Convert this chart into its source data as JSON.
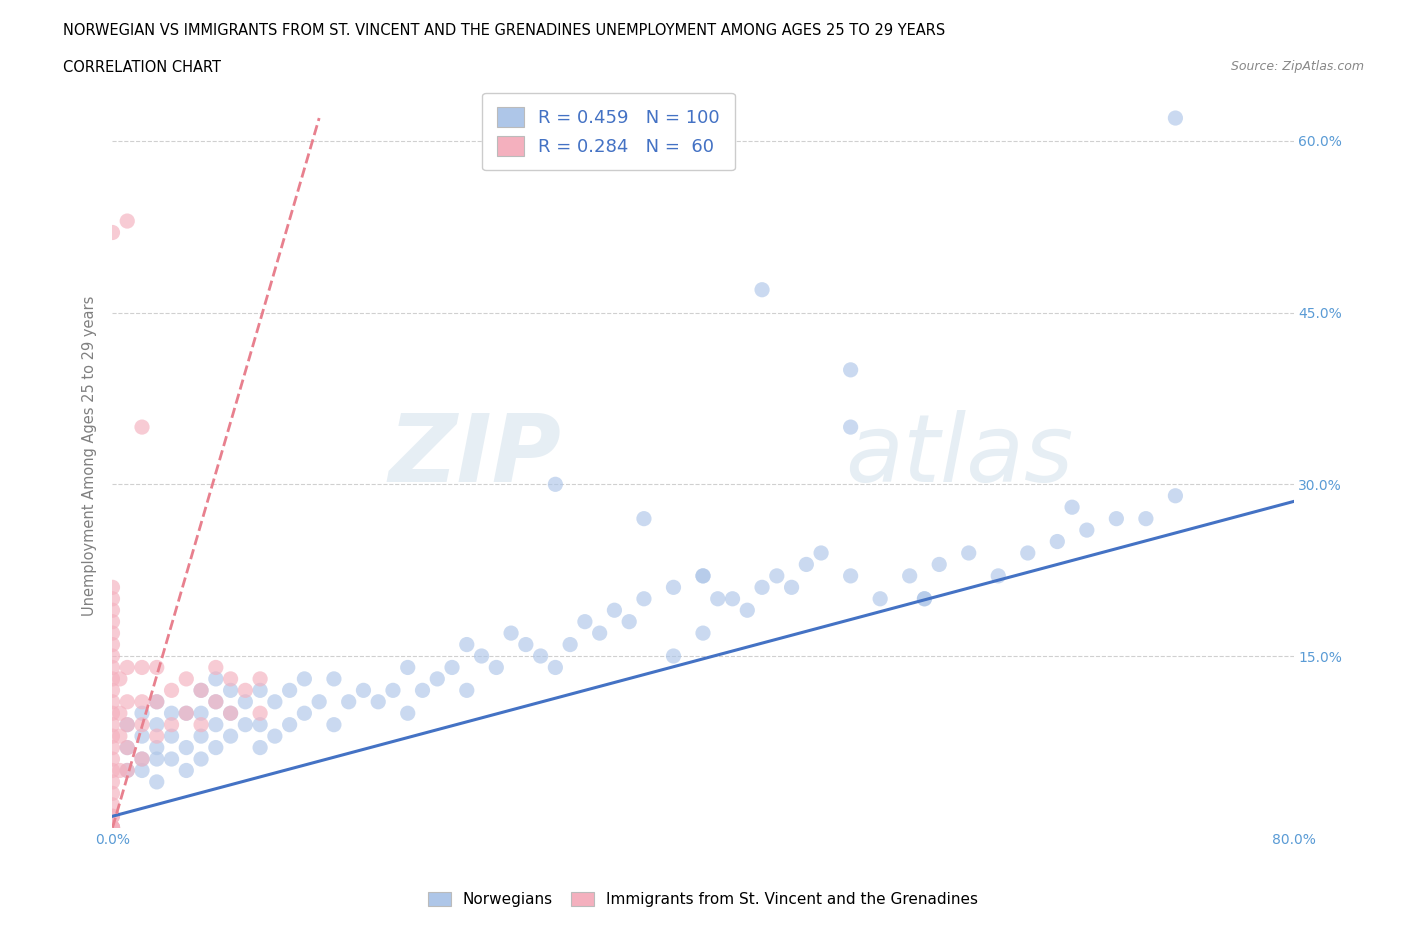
{
  "title_line1": "NORWEGIAN VS IMMIGRANTS FROM ST. VINCENT AND THE GRENADINES UNEMPLOYMENT AMONG AGES 25 TO 29 YEARS",
  "title_line2": "CORRELATION CHART",
  "source_text": "Source: ZipAtlas.com",
  "ylabel": "Unemployment Among Ages 25 to 29 years",
  "xlim": [
    0.0,
    0.8
  ],
  "ylim": [
    0.0,
    0.65
  ],
  "xticks": [
    0.0,
    0.1,
    0.2,
    0.3,
    0.4,
    0.5,
    0.6,
    0.7,
    0.8
  ],
  "xticklabels": [
    "0.0%",
    "",
    "",
    "",
    "",
    "",
    "",
    "",
    "80.0%"
  ],
  "yticks": [
    0.0,
    0.15,
    0.3,
    0.45,
    0.6
  ],
  "yticklabels": [
    "",
    "15.0%",
    "30.0%",
    "45.0%",
    "60.0%"
  ],
  "grid_color": "#d0d0d0",
  "background_color": "#ffffff",
  "norwegian_color": "#aec6e8",
  "immigrant_color": "#f4b0be",
  "norwegian_line_color": "#4472c4",
  "immigrant_line_color": "#e8808e",
  "R_norwegian": 0.459,
  "N_norwegian": 100,
  "R_immigrant": 0.284,
  "N_immigrant": 60,
  "watermark_zip": "ZIP",
  "watermark_atlas": "atlas",
  "legend_norwegian": "Norwegians",
  "legend_immigrant": "Immigrants from St. Vincent and the Grenadines",
  "nor_line_x0": 0.0,
  "nor_line_y0": 0.01,
  "nor_line_x1": 0.8,
  "nor_line_y1": 0.285,
  "imm_line_x0": 0.0,
  "imm_line_y0": 0.0,
  "imm_line_x1": 0.14,
  "imm_line_y1": 0.62,
  "nor_scatter_x": [
    0.01,
    0.01,
    0.01,
    0.02,
    0.02,
    0.02,
    0.02,
    0.03,
    0.03,
    0.03,
    0.03,
    0.03,
    0.04,
    0.04,
    0.04,
    0.05,
    0.05,
    0.05,
    0.06,
    0.06,
    0.06,
    0.06,
    0.07,
    0.07,
    0.07,
    0.07,
    0.08,
    0.08,
    0.08,
    0.09,
    0.09,
    0.1,
    0.1,
    0.1,
    0.11,
    0.11,
    0.12,
    0.12,
    0.13,
    0.13,
    0.14,
    0.15,
    0.15,
    0.16,
    0.17,
    0.18,
    0.19,
    0.2,
    0.2,
    0.21,
    0.22,
    0.23,
    0.24,
    0.24,
    0.25,
    0.26,
    0.27,
    0.28,
    0.29,
    0.3,
    0.31,
    0.32,
    0.33,
    0.34,
    0.35,
    0.36,
    0.38,
    0.4,
    0.4,
    0.41,
    0.42,
    0.43,
    0.44,
    0.45,
    0.46,
    0.47,
    0.48,
    0.5,
    0.5,
    0.52,
    0.54,
    0.55,
    0.56,
    0.58,
    0.6,
    0.62,
    0.64,
    0.65,
    0.66,
    0.68,
    0.7,
    0.72,
    0.5,
    0.44,
    0.55,
    0.36,
    0.38,
    0.4,
    0.3,
    0.72
  ],
  "nor_scatter_y": [
    0.05,
    0.07,
    0.09,
    0.05,
    0.06,
    0.08,
    0.1,
    0.04,
    0.06,
    0.07,
    0.09,
    0.11,
    0.06,
    0.08,
    0.1,
    0.05,
    0.07,
    0.1,
    0.06,
    0.08,
    0.1,
    0.12,
    0.07,
    0.09,
    0.11,
    0.13,
    0.08,
    0.1,
    0.12,
    0.09,
    0.11,
    0.07,
    0.09,
    0.12,
    0.08,
    0.11,
    0.09,
    0.12,
    0.1,
    0.13,
    0.11,
    0.09,
    0.13,
    0.11,
    0.12,
    0.11,
    0.12,
    0.1,
    0.14,
    0.12,
    0.13,
    0.14,
    0.12,
    0.16,
    0.15,
    0.14,
    0.17,
    0.16,
    0.15,
    0.14,
    0.16,
    0.18,
    0.17,
    0.19,
    0.18,
    0.2,
    0.21,
    0.22,
    0.17,
    0.2,
    0.2,
    0.19,
    0.21,
    0.22,
    0.21,
    0.23,
    0.24,
    0.22,
    0.4,
    0.2,
    0.22,
    0.2,
    0.23,
    0.24,
    0.22,
    0.24,
    0.25,
    0.28,
    0.26,
    0.27,
    0.27,
    0.29,
    0.35,
    0.47,
    0.2,
    0.27,
    0.15,
    0.22,
    0.3,
    0.62
  ],
  "imm_scatter_x": [
    0.0,
    0.0,
    0.0,
    0.0,
    0.0,
    0.0,
    0.0,
    0.0,
    0.0,
    0.0,
    0.0,
    0.0,
    0.0,
    0.0,
    0.0,
    0.0,
    0.0,
    0.0,
    0.0,
    0.0,
    0.0,
    0.0,
    0.0,
    0.0,
    0.0,
    0.0,
    0.0,
    0.0,
    0.005,
    0.005,
    0.005,
    0.005,
    0.01,
    0.01,
    0.01,
    0.01,
    0.01,
    0.02,
    0.02,
    0.02,
    0.02,
    0.03,
    0.03,
    0.03,
    0.04,
    0.04,
    0.05,
    0.05,
    0.06,
    0.06,
    0.07,
    0.07,
    0.08,
    0.08,
    0.09,
    0.1,
    0.1,
    0.0,
    0.01,
    0.02
  ],
  "imm_scatter_y": [
    0.0,
    0.0,
    0.0,
    0.0,
    0.0,
    0.0,
    0.01,
    0.01,
    0.02,
    0.03,
    0.04,
    0.05,
    0.06,
    0.07,
    0.08,
    0.09,
    0.1,
    0.11,
    0.12,
    0.13,
    0.14,
    0.15,
    0.16,
    0.17,
    0.18,
    0.19,
    0.2,
    0.21,
    0.05,
    0.08,
    0.1,
    0.13,
    0.05,
    0.07,
    0.09,
    0.11,
    0.14,
    0.06,
    0.09,
    0.11,
    0.14,
    0.08,
    0.11,
    0.14,
    0.09,
    0.12,
    0.1,
    0.13,
    0.09,
    0.12,
    0.11,
    0.14,
    0.1,
    0.13,
    0.12,
    0.1,
    0.13,
    0.52,
    0.53,
    0.35
  ]
}
